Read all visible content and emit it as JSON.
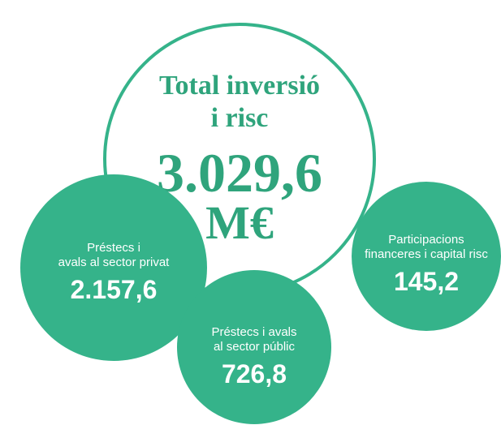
{
  "center": {
    "title_lines": [
      "Total inversió",
      "i risc"
    ],
    "value": "3.029,6",
    "unit": "M€"
  },
  "nodes": [
    {
      "label_lines": [
        "Préstecs i",
        "avals al sector privat"
      ],
      "value": "2.157,6"
    },
    {
      "label_lines": [
        "Préstecs i avals",
        "al sector públic"
      ],
      "value": "726,8"
    },
    {
      "label_lines": [
        "Participacions",
        "financeres i capital risc"
      ],
      "value": "145,2"
    }
  ]
}
